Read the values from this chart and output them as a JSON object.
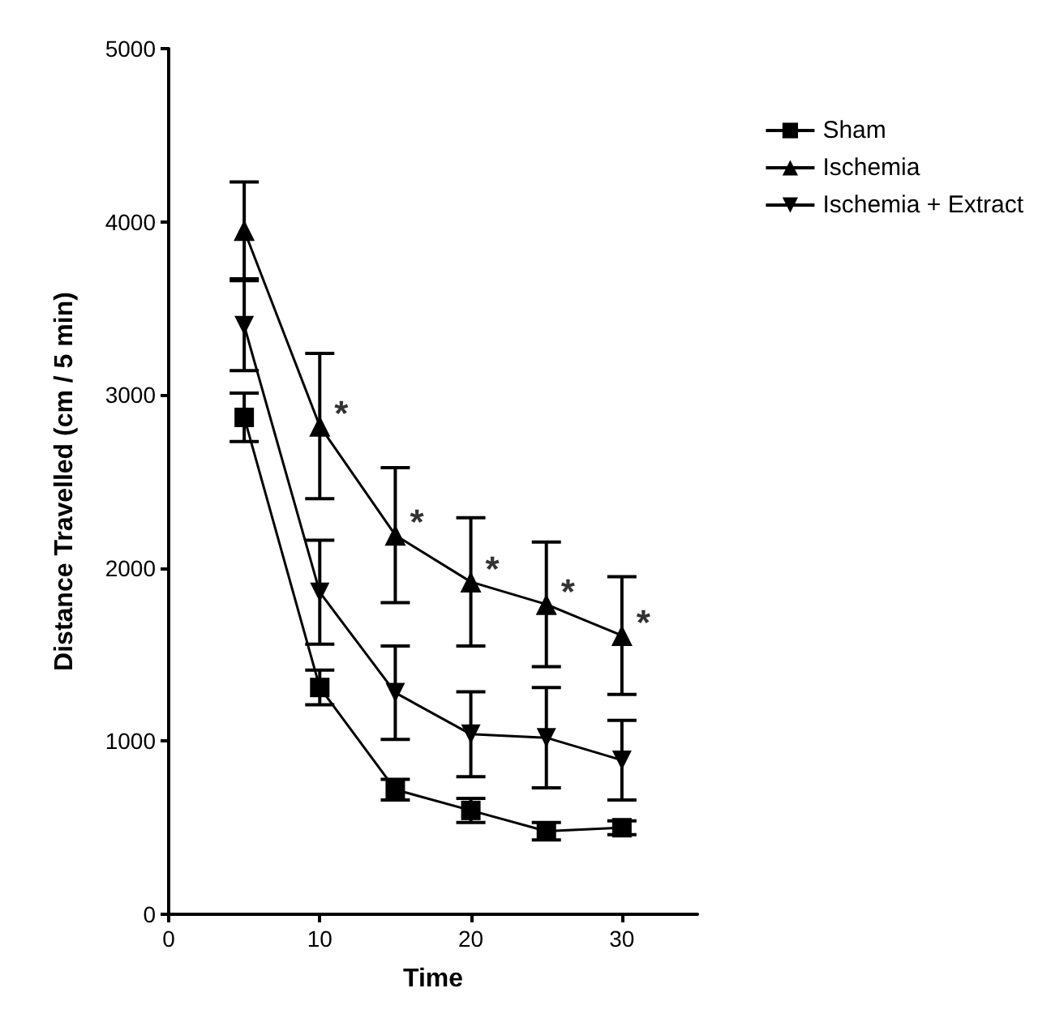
{
  "chart_data": {
    "type": "line",
    "xlabel": "Time",
    "ylabel": "Distance Travelled (cm / 5 min)",
    "x": [
      5,
      10,
      15,
      20,
      25,
      30
    ],
    "series": [
      {
        "name": "Sham",
        "color": "#000000",
        "marker": "square",
        "values": [
          2870,
          1310,
          720,
          600,
          480,
          500
        ],
        "errors": [
          140,
          100,
          60,
          70,
          50,
          40
        ]
      },
      {
        "name": "Ischemia",
        "color": "#000000",
        "marker": "triangle",
        "values": [
          3950,
          2820,
          2190,
          1920,
          1790,
          1610
        ],
        "errors": [
          280,
          420,
          390,
          370,
          360,
          340
        ]
      },
      {
        "name": "Ischemia + Extract",
        "color": "#000000",
        "marker": "triangle-down",
        "values": [
          3400,
          1860,
          1280,
          1040,
          1020,
          890
        ],
        "errors": [
          260,
          300,
          270,
          245,
          290,
          230
        ]
      }
    ],
    "annotations": [
      {
        "text": "*",
        "x": 10,
        "y": 2820
      },
      {
        "text": "*",
        "x": 15,
        "y": 2190
      },
      {
        "text": "*",
        "x": 20,
        "y": 1920
      },
      {
        "text": "*",
        "x": 25,
        "y": 1790
      },
      {
        "text": "*",
        "x": 30,
        "y": 1610
      }
    ],
    "xlim": [
      0,
      35
    ],
    "xticks": [
      0,
      10,
      20,
      30
    ],
    "ylim": [
      0,
      5000
    ],
    "yticks": [
      0,
      1000,
      2000,
      3000,
      4000,
      5000
    ],
    "grid": false,
    "legend": "top right",
    "line_style": "solid"
  }
}
